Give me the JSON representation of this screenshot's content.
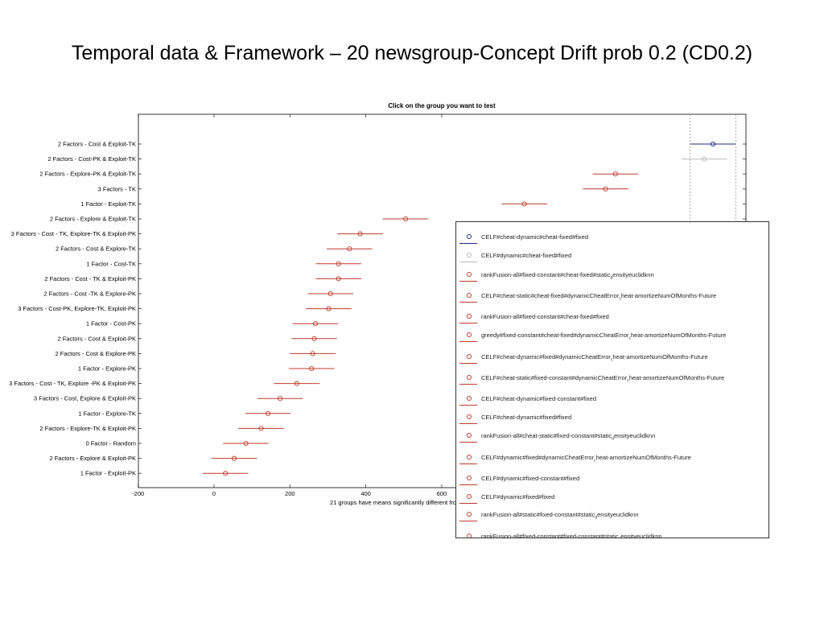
{
  "slide": {
    "title": "Temporal data & Framework – 20 newsgroup-Concept Drift prob 0.2 (CD0.2)"
  },
  "chart_data": {
    "type": "scatter",
    "title": "Click on the group you want to test",
    "xlabel": "21 groups have means significantly different from",
    "xlim": [
      -200,
      1400
    ],
    "xticks": [
      -200,
      0,
      200,
      400,
      600
    ],
    "grid": false,
    "legend_position": "bottom-right",
    "groups": [
      {
        "label": "2 Factors - Cost & Exploit-TK",
        "mean": 1315,
        "low": 1255,
        "high": 1375,
        "color": "#1f2a8a"
      },
      {
        "label": "2 Factors - Cost-PK & Exploit-TK",
        "mean": 1292,
        "low": 1232,
        "high": 1352,
        "color": "#bbbbbb"
      },
      {
        "label": "2 Factors - Explore-PK & Exploit-TK",
        "mean": 1058,
        "low": 998,
        "high": 1118,
        "color": "#c0392b"
      },
      {
        "label": "3 Factors - TK",
        "mean": 1032,
        "low": 972,
        "high": 1092,
        "color": "#c0392b"
      },
      {
        "label": "1 Factor - Exploit-TK",
        "mean": 818,
        "low": 758,
        "high": 878,
        "color": "#c0392b"
      },
      {
        "label": "2 Factors - Explore & Exploit-TK",
        "mean": 505,
        "low": 445,
        "high": 565,
        "color": "#c0392b"
      },
      {
        "label": "3 Factors - Cost - TK, Explore-TK & Exploit-PK",
        "mean": 385,
        "low": 325,
        "high": 445,
        "color": "#c0392b"
      },
      {
        "label": "2 Factors - Cost & Explore-TK",
        "mean": 357,
        "low": 297,
        "high": 417,
        "color": "#c0392b"
      },
      {
        "label": "1 Factor - Cost-TK",
        "mean": 328,
        "low": 268,
        "high": 388,
        "color": "#c0392b"
      },
      {
        "label": "2 Factors - Cost - TK & Exploit-PK",
        "mean": 328,
        "low": 268,
        "high": 388,
        "color": "#c0392b"
      },
      {
        "label": "2 Factors - Cost -TK & Explore-PK",
        "mean": 307,
        "low": 247,
        "high": 367,
        "color": "#c0392b"
      },
      {
        "label": "3 Factors - Cost-PK, Explore-TK, Exploit-PK",
        "mean": 302,
        "low": 242,
        "high": 362,
        "color": "#c0392b"
      },
      {
        "label": "1 Factor - Cost-PK",
        "mean": 267,
        "low": 207,
        "high": 327,
        "color": "#c0392b"
      },
      {
        "label": "2 Factors - Cost & Exploit-PK",
        "mean": 264,
        "low": 204,
        "high": 324,
        "color": "#c0392b"
      },
      {
        "label": "2 Factors - Cost & Explore-PK",
        "mean": 260,
        "low": 200,
        "high": 320,
        "color": "#c0392b"
      },
      {
        "label": "1 Factor - Explore-PK",
        "mean": 257,
        "low": 197,
        "high": 317,
        "color": "#c0392b"
      },
      {
        "label": "3 Factors - Cost - TK, Explore -PK & Exploit-PK",
        "mean": 218,
        "low": 158,
        "high": 278,
        "color": "#c0392b"
      },
      {
        "label": "3 Factors - Cost, Explore & Exploit-PK",
        "mean": 174,
        "low": 114,
        "high": 234,
        "color": "#c0392b"
      },
      {
        "label": "1 Factor - Explore-TK",
        "mean": 142,
        "low": 82,
        "high": 202,
        "color": "#c0392b"
      },
      {
        "label": "2 Factors - Explore-TK & Exploit-PK",
        "mean": 124,
        "low": 64,
        "high": 184,
        "color": "#c0392b"
      },
      {
        "label": "0 Factor - Random",
        "mean": 84,
        "low": 24,
        "high": 144,
        "color": "#c0392b"
      },
      {
        "label": "2 Factors - Explore & Exploit-PK",
        "mean": 53,
        "low": -7,
        "high": 113,
        "color": "#c0392b"
      },
      {
        "label": "1 Factor - Exploit-PK",
        "mean": 30,
        "low": -30,
        "high": 90,
        "color": "#c0392b"
      }
    ],
    "legend": [
      {
        "text": "CELF#cheat-dynamic#cheat-fixed#fixed",
        "color": "#1f2a8a"
      },
      {
        "text": "CELF#dynamic#cheat-fixed#fixed",
        "color": "#bbbbbb"
      },
      {
        "text": "rankFusion-all#fixed-constant#cheat-fixed#static_densityeuclidknn",
        "color": "#c0392b"
      },
      {
        "text": "CELF#cheat-static#cheat-fixed#dynamicCheatError_cheat-amortizeNumOfMonths-Future",
        "color": "#c0392b"
      },
      {
        "text": "rankFusion-all#fixed-constant#cheat-fixed#fixed",
        "color": "#c0392b"
      },
      {
        "text": "greedy#fixed-constant#cheat-fixed#dynamicCheatError_cheat-amortizeNumOfMonths-Future",
        "color": "#c0392b"
      },
      {
        "text": "CELF#cheat-dynamic#fixed#dynamicCheatError_cheat-amortizeNumOfMonths-Future",
        "color": "#c0392b"
      },
      {
        "text": "CELF#cheat-static#fixed-constant#dynamicCheatError_cheat-amortizeNumOfMonths-Future",
        "color": "#c0392b"
      },
      {
        "text": "CELF#cheat-dynamic#fixed-constant#fixed",
        "color": "#c0392b"
      },
      {
        "text": "CELF#cheat-dynamic#fixed#fixed",
        "color": "#c0392b"
      },
      {
        "text": "rankFusion-all#cheat-static#fixed-constant#static_densityeuclidknn",
        "color": "#c0392b"
      },
      {
        "text": "CELF#dynamic#fixed#dynamicCheatError_cheat-amortizeNumOfMonths-Future",
        "color": "#c0392b"
      },
      {
        "text": "CELF#dynamic#fixed-constant#fixed",
        "color": "#c0392b"
      },
      {
        "text": "CELF#dynamic#fixed#fixed",
        "color": "#c0392b"
      },
      {
        "text": "rankFusion-all#static#fixed-constant#static_densityeuclidknn",
        "color": "#c0392b"
      },
      {
        "text": "rankFusion-all#fixed-constant#fixed-constant#static_densityeuclidknn",
        "color": "#c0392b"
      }
    ]
  }
}
